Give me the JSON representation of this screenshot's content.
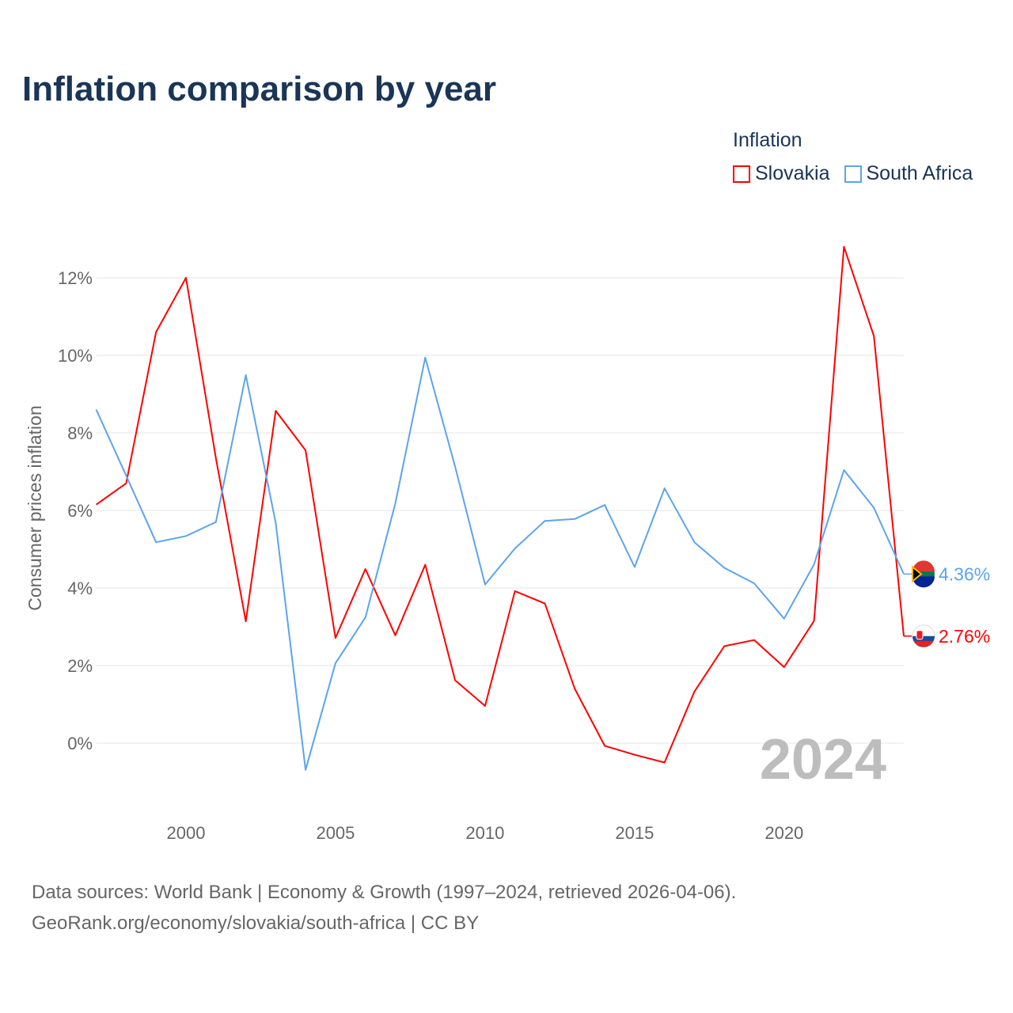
{
  "title": "Inflation comparison by year",
  "legend": {
    "title": "Inflation",
    "items": [
      {
        "name": "Slovakia",
        "color": "#ff0000"
      },
      {
        "name": "South Africa",
        "color": "#5ba4ee"
      }
    ]
  },
  "source": {
    "line1": "Data sources: World Bank | Economy & Growth (1997–2024, retrieved 2026-04-06).",
    "line2": "GeoRank.org/economy/slovakia/south-africa | CC BY"
  },
  "chart_data": {
    "type": "line",
    "title": "Inflation comparison by year",
    "xlabel": "",
    "ylabel": "Consumer prices inflation",
    "xlim": [
      1997,
      2024
    ],
    "ylim": [
      -1.5,
      13.5
    ],
    "x_ticks": [
      2000,
      2005,
      2010,
      2015,
      2020
    ],
    "x_tick_labels": [
      "2000",
      "2005",
      "2010",
      "2015",
      "2020"
    ],
    "y_ticks": [
      0,
      2,
      4,
      6,
      8,
      10,
      12
    ],
    "y_tick_labels": [
      "0%",
      "2%",
      "4%",
      "6%",
      "8%",
      "10%",
      "12%"
    ],
    "grid": true,
    "legend_position": "top-right",
    "year_watermark": "2024",
    "x": [
      1997,
      1998,
      1999,
      2000,
      2001,
      2002,
      2003,
      2004,
      2005,
      2006,
      2007,
      2008,
      2009,
      2010,
      2011,
      2012,
      2013,
      2014,
      2015,
      2016,
      2017,
      2018,
      2019,
      2020,
      2021,
      2022,
      2023,
      2024
    ],
    "series": [
      {
        "name": "Slovakia",
        "color": "#ff0000",
        "end_label": "2.76%",
        "values": [
          6.15,
          6.7,
          10.6,
          12.0,
          7.35,
          3.14,
          8.57,
          7.55,
          2.71,
          4.49,
          2.78,
          4.6,
          1.62,
          0.96,
          3.92,
          3.6,
          1.4,
          -0.07,
          -0.3,
          -0.5,
          1.33,
          2.5,
          2.66,
          1.96,
          3.15,
          12.8,
          10.5,
          2.76
        ]
      },
      {
        "name": "South Africa",
        "color": "#5ba4ee",
        "end_label": "4.36%",
        "values": [
          8.6,
          6.9,
          5.18,
          5.34,
          5.7,
          9.49,
          5.68,
          -0.69,
          2.06,
          3.24,
          6.18,
          9.94,
          7.13,
          4.09,
          5.02,
          5.73,
          5.78,
          6.14,
          4.54,
          6.57,
          5.18,
          4.52,
          4.12,
          3.21,
          4.61,
          7.04,
          6.07,
          4.36
        ]
      }
    ]
  }
}
